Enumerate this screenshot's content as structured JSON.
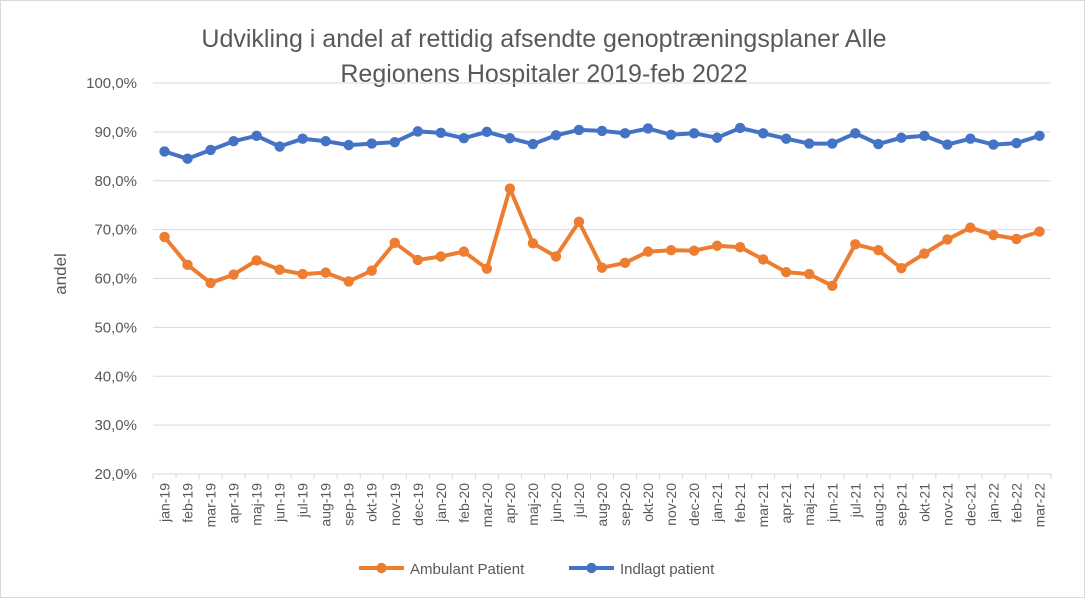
{
  "chart_data": {
    "type": "line",
    "title_lines": [
      "Udvikling i andel af rettidig afsendte genoptræningsplaner  Alle",
      "Regionens Hospitaler 2019-feb 2022"
    ],
    "xlabel": "",
    "ylabel": "andel",
    "ylim": [
      0.2,
      1.0
    ],
    "yticks": [
      "20,0%",
      "30,0%",
      "40,0%",
      "50,0%",
      "60,0%",
      "70,0%",
      "80,0%",
      "90,0%",
      "100,0%"
    ],
    "grid": true,
    "legend_position": "bottom",
    "categories": [
      "jan-19",
      "feb-19",
      "mar-19",
      "apr-19",
      "maj-19",
      "jun-19",
      "jul-19",
      "aug-19",
      "sep-19",
      "okt-19",
      "nov-19",
      "dec-19",
      "jan-20",
      "feb-20",
      "mar-20",
      "apr-20",
      "maj-20",
      "jun-20",
      "jul-20",
      "aug-20",
      "sep-20",
      "okt-20",
      "nov-20",
      "dec-20",
      "jan-21",
      "feb-21",
      "mar-21",
      "apr-21",
      "maj-21",
      "jun-21",
      "jul-21",
      "aug-21",
      "sep-21",
      "okt-21",
      "nov-21",
      "dec-21",
      "jan-22",
      "feb-22",
      "mar-22"
    ],
    "series": [
      {
        "name": "Ambulant Patient",
        "color": "#ED7D31",
        "values": [
          0.685,
          0.628,
          0.591,
          0.608,
          0.637,
          0.618,
          0.609,
          0.612,
          0.594,
          0.616,
          0.673,
          0.638,
          0.645,
          0.655,
          0.62,
          0.784,
          0.672,
          0.645,
          0.716,
          0.622,
          0.632,
          0.655,
          0.658,
          0.657,
          0.667,
          0.664,
          0.639,
          0.613,
          0.609,
          0.585,
          0.67,
          0.658,
          0.621,
          0.651,
          0.68,
          0.704,
          0.689,
          0.681,
          0.696
        ]
      },
      {
        "name": "Indlagt patient",
        "color": "#4472C4",
        "values": [
          0.86,
          0.845,
          0.863,
          0.881,
          0.892,
          0.87,
          0.886,
          0.881,
          0.873,
          0.876,
          0.879,
          0.901,
          0.898,
          0.887,
          0.9,
          0.887,
          0.875,
          0.893,
          0.904,
          0.902,
          0.897,
          0.907,
          0.894,
          0.897,
          0.888,
          0.908,
          0.897,
          0.886,
          0.876,
          0.876,
          0.897,
          0.875,
          0.888,
          0.892,
          0.874,
          0.886,
          0.874,
          0.877,
          0.892
        ]
      }
    ]
  }
}
